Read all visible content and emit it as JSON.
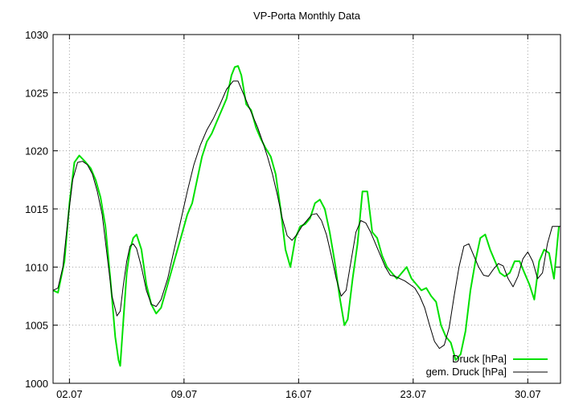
{
  "chart_data": {
    "type": "line",
    "title": "VP-Porta Monthly Data",
    "xlabel": "",
    "ylabel": "",
    "x_ticks": [
      "02.07",
      "09.07",
      "16.07",
      "23.07",
      "30.07"
    ],
    "x_tick_days": [
      2,
      9,
      16,
      23,
      30
    ],
    "xlim": [
      1,
      32
    ],
    "ylim": [
      1000,
      1030
    ],
    "y_ticks": [
      1000,
      1005,
      1010,
      1015,
      1020,
      1025,
      1030
    ],
    "grid": true,
    "grid_style": "dotted",
    "legend_position": "bottom-right",
    "series": [
      {
        "name": "Druck [hPa]",
        "color": "#00e000",
        "x": [
          1.0,
          1.3,
          1.7,
          2.0,
          2.3,
          2.6,
          3.0,
          3.3,
          3.6,
          3.9,
          4.2,
          4.5,
          4.8,
          5.0,
          5.1,
          5.3,
          5.5,
          5.7,
          5.9,
          6.1,
          6.4,
          6.7,
          7.0,
          7.3,
          7.6,
          8.0,
          8.4,
          8.8,
          9.2,
          9.5,
          9.8,
          10.1,
          10.4,
          10.7,
          11.0,
          11.3,
          11.6,
          11.9,
          12.1,
          12.3,
          12.5,
          12.8,
          13.1,
          13.4,
          13.7,
          14.0,
          14.3,
          14.6,
          14.9,
          15.2,
          15.5,
          15.8,
          16.1,
          16.4,
          16.7,
          17.0,
          17.3,
          17.6,
          17.9,
          18.2,
          18.5,
          18.8,
          19.0,
          19.3,
          19.6,
          19.9,
          20.2,
          20.5,
          20.8,
          21.1,
          21.4,
          21.7,
          22.0,
          22.3,
          22.6,
          22.9,
          23.2,
          23.5,
          23.8,
          24.1,
          24.4,
          24.7,
          25.0,
          25.3,
          25.6,
          25.9,
          26.2,
          26.5,
          26.8,
          27.1,
          27.4,
          27.7,
          28.0,
          28.3,
          28.6,
          28.9,
          29.2,
          29.5,
          29.8,
          30.1,
          30.4,
          30.7,
          31.0,
          31.3,
          31.6,
          31.9
        ],
        "values": [
          1008.0,
          1007.8,
          1010.5,
          1015.5,
          1019.0,
          1019.6,
          1019.0,
          1018.5,
          1017.5,
          1016.0,
          1013.5,
          1009.0,
          1004.0,
          1002.0,
          1001.5,
          1005.5,
          1009.5,
          1011.5,
          1012.5,
          1012.8,
          1011.5,
          1008.5,
          1006.8,
          1006.0,
          1006.5,
          1008.5,
          1010.5,
          1012.5,
          1014.5,
          1015.5,
          1017.5,
          1019.5,
          1020.8,
          1021.5,
          1022.5,
          1023.5,
          1024.5,
          1026.5,
          1027.2,
          1027.3,
          1026.5,
          1024.0,
          1023.5,
          1022.0,
          1021.0,
          1020.2,
          1019.5,
          1018.0,
          1015.0,
          1011.5,
          1010.0,
          1012.5,
          1013.5,
          1013.7,
          1014.2,
          1015.5,
          1015.8,
          1015.0,
          1013.0,
          1010.5,
          1007.5,
          1005.0,
          1005.5,
          1009.0,
          1012.0,
          1016.5,
          1016.5,
          1013.0,
          1012.5,
          1011.0,
          1010.0,
          1009.5,
          1009.0,
          1009.5,
          1010.0,
          1009.0,
          1008.5,
          1008.0,
          1008.2,
          1007.5,
          1007.0,
          1005.0,
          1004.0,
          1003.5,
          1002.0,
          1002.5,
          1004.5,
          1008.0,
          1010.5,
          1012.5,
          1012.8,
          1011.5,
          1010.5,
          1009.5,
          1009.2,
          1009.5,
          1010.5,
          1010.5,
          1009.5,
          1008.5,
          1007.2,
          1010.5,
          1011.5,
          1011.2,
          1009.0,
          1013.5
        ]
      },
      {
        "name": "gem. Druck [hPa]",
        "color": "#000000",
        "x": [
          1.0,
          1.3,
          1.6,
          1.9,
          2.2,
          2.5,
          2.8,
          3.1,
          3.4,
          3.7,
          4.0,
          4.3,
          4.6,
          4.9,
          5.1,
          5.3,
          5.5,
          5.7,
          5.9,
          6.1,
          6.4,
          6.7,
          7.0,
          7.3,
          7.6,
          8.0,
          8.4,
          8.8,
          9.2,
          9.6,
          10.0,
          10.4,
          10.8,
          11.2,
          11.6,
          12.0,
          12.3,
          12.6,
          12.9,
          13.2,
          13.5,
          13.8,
          14.1,
          14.4,
          14.7,
          15.0,
          15.3,
          15.6,
          15.9,
          16.2,
          16.5,
          16.8,
          17.1,
          17.4,
          17.7,
          18.0,
          18.3,
          18.6,
          18.9,
          19.2,
          19.5,
          19.8,
          20.1,
          20.4,
          20.7,
          21.0,
          21.3,
          21.6,
          21.9,
          22.2,
          22.5,
          22.8,
          23.1,
          23.4,
          23.7,
          24.0,
          24.3,
          24.6,
          24.9,
          25.2,
          25.5,
          25.8,
          26.1,
          26.4,
          26.7,
          27.0,
          27.3,
          27.6,
          27.9,
          28.2,
          28.5,
          28.8,
          29.1,
          29.4,
          29.7,
          30.0,
          30.3,
          30.6,
          30.9,
          31.2,
          31.5,
          31.8,
          32.0
        ],
        "values": [
          1008.0,
          1008.2,
          1010.0,
          1014.0,
          1017.5,
          1019.0,
          1019.1,
          1018.8,
          1018.0,
          1016.5,
          1014.5,
          1011.0,
          1007.5,
          1005.8,
          1006.2,
          1008.5,
          1010.5,
          1011.8,
          1012.0,
          1011.6,
          1010.0,
          1008.0,
          1006.8,
          1006.6,
          1007.2,
          1009.0,
          1011.5,
          1014.0,
          1016.5,
          1018.8,
          1020.5,
          1021.8,
          1022.8,
          1024.0,
          1025.3,
          1026.0,
          1026.0,
          1025.0,
          1024.0,
          1023.0,
          1022.0,
          1020.8,
          1019.5,
          1018.0,
          1016.2,
          1014.2,
          1012.7,
          1012.3,
          1012.8,
          1013.5,
          1014.0,
          1014.5,
          1014.6,
          1014.0,
          1012.8,
          1011.0,
          1009.0,
          1007.5,
          1008.0,
          1010.5,
          1013.0,
          1014.0,
          1013.8,
          1013.0,
          1012.0,
          1011.0,
          1010.0,
          1009.3,
          1009.2,
          1009.0,
          1008.8,
          1008.5,
          1008.2,
          1007.5,
          1006.5,
          1005.0,
          1003.6,
          1003.0,
          1003.3,
          1004.8,
          1007.5,
          1010.0,
          1011.8,
          1012.0,
          1011.0,
          1010.0,
          1009.3,
          1009.2,
          1009.8,
          1010.3,
          1010.1,
          1009.0,
          1008.3,
          1009.2,
          1010.7,
          1011.3,
          1010.5,
          1009.0,
          1009.5,
          1012.0,
          1013.5,
          1013.5,
          1013.5
        ]
      }
    ]
  }
}
